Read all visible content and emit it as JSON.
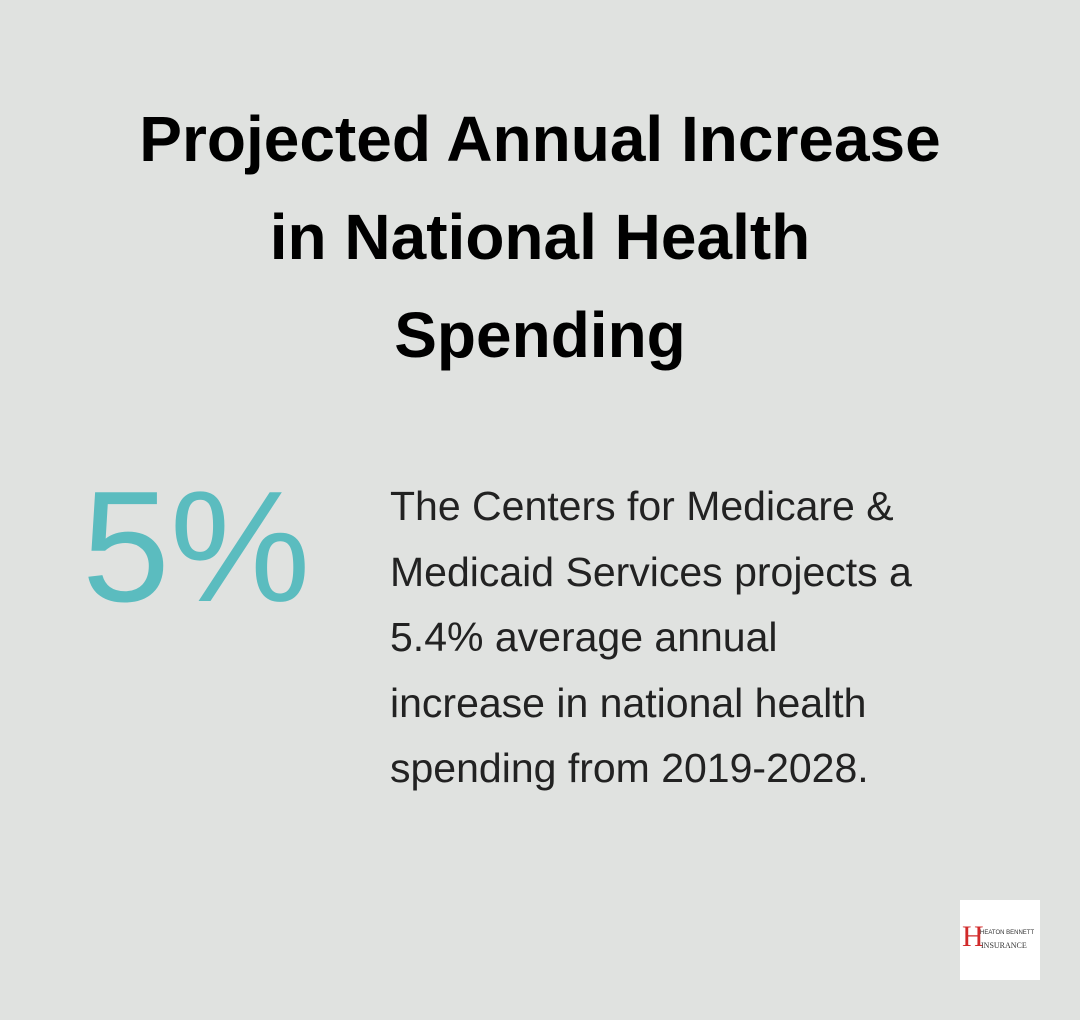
{
  "title_lines": [
    "Projected Annual Increase",
    "in National Health",
    "Spending"
  ],
  "stat": "5%",
  "description_lines": [
    "The Centers for Medicare &",
    "Medicaid Services projects a",
    "5.4% average annual",
    "increase in national health",
    "spending from 2019-2028."
  ],
  "logo": {
    "letter": "H",
    "top": "HEATON BENNETT",
    "bottom": "INSURANCE"
  }
}
